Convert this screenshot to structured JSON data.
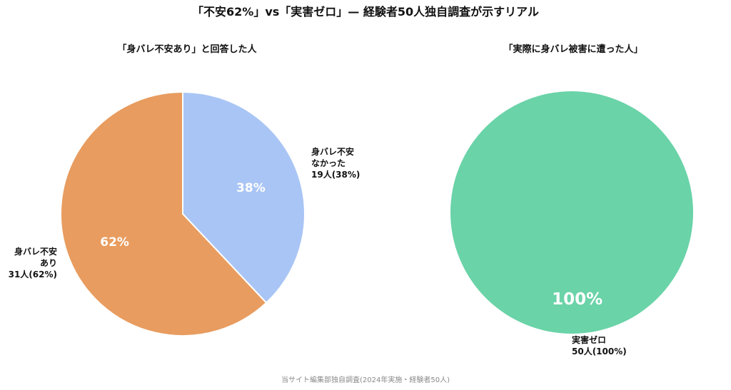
{
  "title": "「不安62%」vs「実害ゼロ」— 経験者50人独自調査が示すリアル",
  "source": "当サイト編集部独自調査(2024年実施・経験者50人)",
  "chart_data": [
    {
      "type": "pie",
      "title": "「身バレ不安あり」と回答した人",
      "start_angle": "12 o'clock, clockwise",
      "exploded_slice": "身バレ不安なかった",
      "slices": [
        {
          "key": "no_worry",
          "value": 19,
          "percent_label": "38%",
          "color": "#a9c5f5",
          "label_lines": [
            "身バレ不安",
            "なかった",
            "19人(38%)"
          ]
        },
        {
          "key": "worry",
          "value": 31,
          "percent_label": "62%",
          "color": "#e89c5f",
          "label_lines": [
            "身バレ不安",
            "あり",
            "31人(62%)"
          ]
        }
      ]
    },
    {
      "type": "pie",
      "title": "「実際に身バレ被害に遭った人」",
      "start_angle": "12 o'clock, clockwise",
      "slices": [
        {
          "key": "zero_damage",
          "value": 50,
          "percent_label": "100%",
          "color": "#6ad3a8",
          "label_lines": [
            "実害ゼロ",
            "50人(100%)"
          ]
        }
      ]
    }
  ]
}
